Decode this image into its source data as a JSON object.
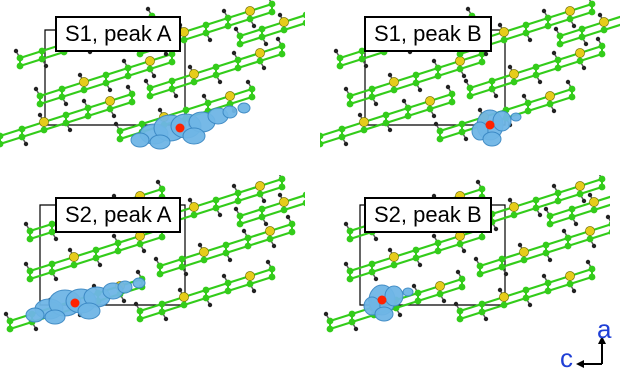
{
  "panels": [
    {
      "label": "S1, peak A",
      "density": "large-extended"
    },
    {
      "label": "S1, peak B",
      "density": "compact"
    },
    {
      "label": "S2, peak A",
      "density": "large-extended"
    },
    {
      "label": "S2, peak B",
      "density": "compact"
    }
  ],
  "axes": {
    "vertical_label": "a",
    "horizontal_label": "c"
  },
  "colors": {
    "carbon": "#33cc1a",
    "sulfur": "#e6cc1a",
    "hydrogen": "#222222",
    "density": "#6fb6e6",
    "density_edge": "#3b88c4",
    "hole": "#ff2200",
    "cell": "#000000",
    "axis": "#1f3fd6"
  }
}
